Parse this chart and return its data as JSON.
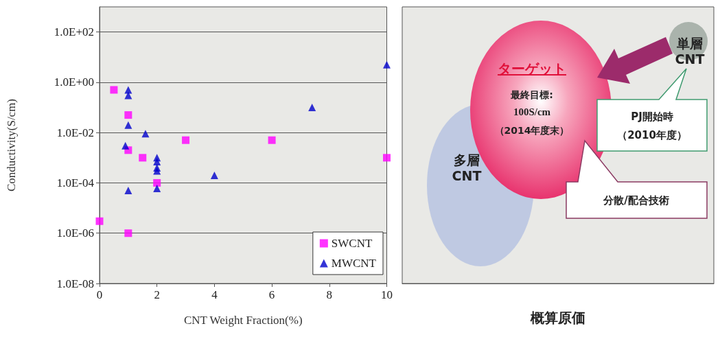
{
  "chart_data": [
    {
      "type": "scatter",
      "xlabel": "CNT Weight Fraction(%)",
      "ylabel": "Conductivity(S/cm)",
      "log": "y",
      "xlim": [
        0,
        10
      ],
      "xticks": [
        0,
        2,
        4,
        6,
        8,
        10
      ],
      "ylim": [
        1e-08,
        1000
      ],
      "yticks": [
        {
          "value": 1e-08,
          "label": "1.0E-08"
        },
        {
          "value": 1e-06,
          "label": "1.0E-06"
        },
        {
          "value": 0.0001,
          "label": "1.0E-04"
        },
        {
          "value": 0.01,
          "label": "1.0E-02"
        },
        {
          "value": 1,
          "label": "1.0E+00"
        },
        {
          "value": 100,
          "label": "1.0E+02"
        }
      ],
      "grid": "y",
      "legend": "bottom right",
      "series": [
        {
          "name": "SWCNT",
          "color": "#ff00ff",
          "marker": "square",
          "x": [
            0.5,
            1,
            1,
            1.5,
            2,
            3,
            6,
            10,
            0,
            1
          ],
          "values": [
            0.5,
            0.05,
            0.002,
            0.001,
            0.0001,
            0.005,
            0.005,
            0.001,
            3e-06,
            1e-06
          ]
        },
        {
          "name": "MWCNT",
          "color": "#0000cc",
          "marker": "triangle",
          "x": [
            1,
            1,
            1,
            1.6,
            0.9,
            2,
            2,
            2,
            2,
            2,
            1,
            4,
            7.4,
            10
          ],
          "values": [
            0.5,
            0.3,
            0.02,
            0.009,
            0.003,
            0.001,
            0.0007,
            0.0004,
            0.0003,
            6e-05,
            5e-05,
            0.0002,
            0.1,
            5
          ]
        }
      ]
    },
    {
      "type": "other",
      "xlabel": "概算原価",
      "annotations": [
        "ターゲット",
        "最終目標:",
        "100S/cm",
        "（2014年度末）",
        "単層\nCNT",
        "多層\nCNT",
        "PJ開始時",
        "（2010年度）",
        "分散/配合技術"
      ]
    }
  ]
}
